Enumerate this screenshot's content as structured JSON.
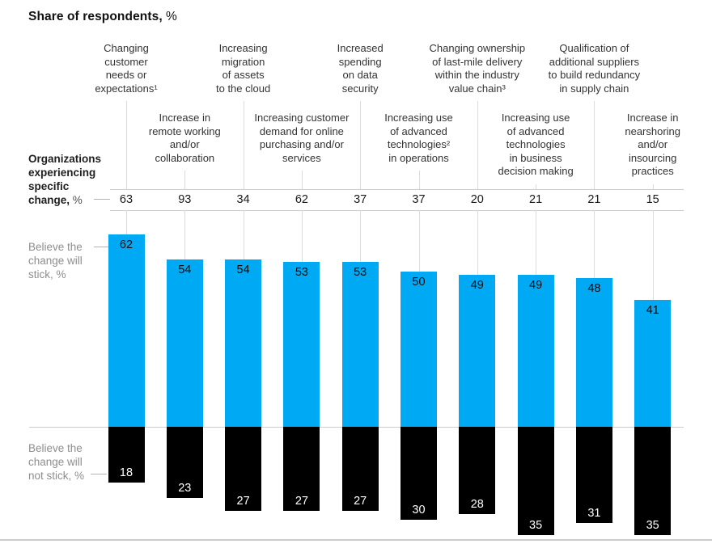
{
  "title": {
    "main": "Share of respondents,",
    "unit": " %"
  },
  "row_labels": {
    "experiencing_main": "Organizations\nexperiencing\nspecific\nchange,",
    "experiencing_unit": " %",
    "stick": "Believe the\nchange will\nstick, %",
    "not_stick": "Believe the\nchange will\nnot stick, %"
  },
  "colors": {
    "stick_bar": "#00A9F4",
    "not_stick_bar": "#000000",
    "header_text": "#333333",
    "muted_label": "#8E8E8E",
    "gridline": "#DCDCDC",
    "rule": "#CCCCCC"
  },
  "chart_data": {
    "type": "bar",
    "title": "Share of respondents, %",
    "orientation": "vertical",
    "diverging_from_zero_baseline": true,
    "legend_position": "left-row-labels",
    "grid": "vertical-leader-lines",
    "categories": [
      "Changing\ncustomer\nneeds or\nexpectations¹",
      "Increase in\nremote working\nand/or\ncollaboration",
      "Increasing\nmigration\nof assets\nto the cloud",
      "Increasing customer\ndemand for online\npurchasing and/or\nservices",
      "Increased\nspending\non data\nsecurity",
      "Increasing use\nof advanced\ntechnologies²\nin operations",
      "Changing ownership\nof last-mile delivery\nwithin the industry\nvalue chain³",
      "Increasing use\nof advanced\ntechnologies\nin business\ndecision making",
      "Qualification of\nadditional suppliers\nto build redundancy\nin supply chain",
      "Increase in\nnearshoring\nand/or\ninsourcing\npractices"
    ],
    "series": [
      {
        "name": "Organizations experiencing specific change, %",
        "role": "value-row",
        "values": [
          63,
          93,
          34,
          62,
          37,
          37,
          20,
          21,
          21,
          15
        ]
      },
      {
        "name": "Believe the change will stick, %",
        "role": "bar-above-baseline",
        "color": "#00A9F4",
        "values": [
          62,
          54,
          54,
          53,
          53,
          50,
          49,
          49,
          48,
          41
        ]
      },
      {
        "name": "Believe the change will not stick, %",
        "role": "bar-below-baseline",
        "color": "#000000",
        "values": [
          18,
          23,
          27,
          27,
          27,
          30,
          28,
          35,
          31,
          35
        ]
      }
    ]
  }
}
